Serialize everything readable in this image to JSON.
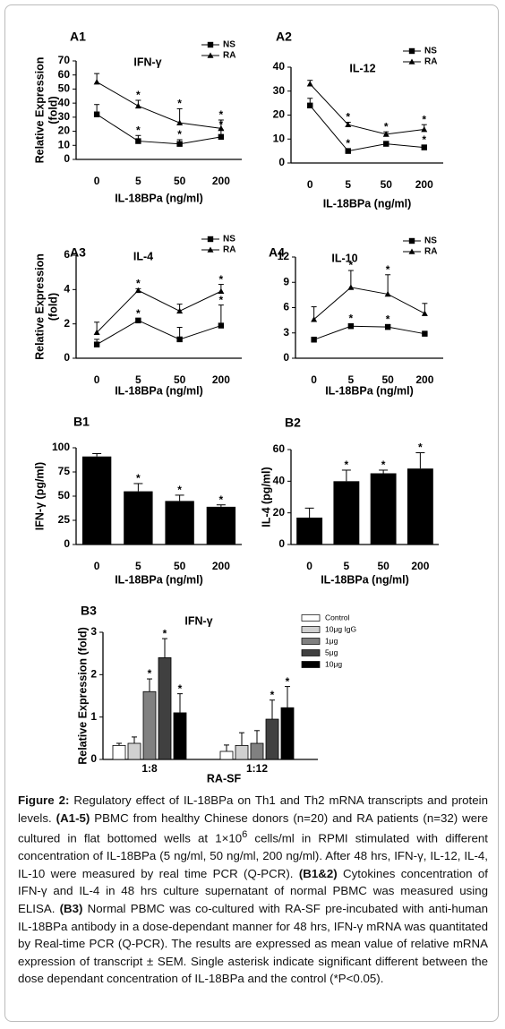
{
  "chart_data": [
    {
      "type": "line",
      "panel": "A1",
      "title": "IFN-γ",
      "ylabel": [
        "Relative Expression",
        "(fold)"
      ],
      "xlabel": "IL-18BPa (ng/ml)",
      "categories": [
        "0",
        "5",
        "50",
        "200"
      ],
      "ylim": [
        0,
        70
      ],
      "yticks": [
        0,
        10,
        20,
        30,
        40,
        50,
        60,
        70
      ],
      "grid": false,
      "legend": "top-right",
      "series": [
        {
          "name": "NS",
          "color": "#000000",
          "marker": "square",
          "values": [
            32,
            13,
            11,
            16
          ],
          "errors": [
            7,
            4,
            3,
            5
          ],
          "significance": [
            null,
            "*",
            "*",
            "*"
          ]
        },
        {
          "name": "RA",
          "color": "#000000",
          "marker": "triangle",
          "values": [
            55,
            38,
            26,
            22
          ],
          "errors": [
            6,
            4,
            10,
            6
          ],
          "significance": [
            null,
            "*",
            "*",
            "*"
          ]
        }
      ]
    },
    {
      "type": "line",
      "panel": "A2",
      "title": "IL-12",
      "xlabel": "IL-18BPa (ng/ml)",
      "categories": [
        "0",
        "5",
        "50",
        "200"
      ],
      "ylim": [
        0,
        40
      ],
      "yticks": [
        0,
        10,
        20,
        30,
        40
      ],
      "grid": false,
      "legend": "top-right",
      "series": [
        {
          "name": "NS",
          "color": "#000000",
          "marker": "square",
          "values": [
            24,
            5,
            8,
            6.5
          ],
          "errors": [
            3,
            1,
            1,
            1
          ],
          "significance": [
            null,
            "*",
            "*",
            "*"
          ]
        },
        {
          "name": "RA",
          "color": "#000000",
          "marker": "triangle",
          "values": [
            33,
            16,
            12,
            14
          ],
          "errors": [
            1.5,
            1,
            1,
            2
          ],
          "significance": [
            null,
            "*",
            "*",
            "*"
          ]
        }
      ]
    },
    {
      "type": "line",
      "panel": "A3",
      "title": "IL-4",
      "ylabel": [
        "Relative Expression",
        "(fold)"
      ],
      "xlabel": "IL-18BPa (ng/ml)",
      "categories": [
        "0",
        "5",
        "50",
        "200"
      ],
      "ylim": [
        0,
        6
      ],
      "yticks": [
        0,
        2,
        4,
        6
      ],
      "grid": false,
      "legend": "top-right",
      "series": [
        {
          "name": "NS",
          "color": "#000000",
          "marker": "square",
          "values": [
            0.8,
            2.2,
            1.1,
            1.9
          ],
          "errors": [
            0.3,
            0.1,
            0.7,
            1.2
          ],
          "significance": [
            null,
            "*",
            null,
            "*"
          ]
        },
        {
          "name": "RA",
          "color": "#000000",
          "marker": "triangle",
          "values": [
            1.5,
            3.95,
            2.75,
            3.9
          ],
          "errors": [
            0.6,
            0.1,
            0.4,
            0.4
          ],
          "significance": [
            null,
            "*",
            null,
            "*"
          ]
        }
      ]
    },
    {
      "type": "line",
      "panel": "A4",
      "title": "IL-10",
      "xlabel": "IL-18BPa (ng/ml)",
      "categories": [
        "0",
        "5",
        "50",
        "200"
      ],
      "ylim": [
        0,
        12
      ],
      "yticks": [
        0,
        3,
        6,
        9,
        12
      ],
      "grid": false,
      "legend": "top-right",
      "series": [
        {
          "name": "NS",
          "color": "#000000",
          "marker": "square",
          "values": [
            2.2,
            3.8,
            3.7,
            2.9
          ],
          "errors": [
            0.3,
            0.3,
            0.3,
            0.3
          ],
          "significance": [
            null,
            "*",
            "*",
            null
          ]
        },
        {
          "name": "RA",
          "color": "#000000",
          "marker": "triangle",
          "values": [
            4.6,
            8.4,
            7.6,
            5.3
          ],
          "errors": [
            1.5,
            2,
            2.3,
            1.2
          ],
          "significance": [
            null,
            "*",
            "*",
            null
          ]
        }
      ]
    },
    {
      "type": "bar",
      "panel": "B1",
      "ylabel": [
        "IFN-γ (pg/ml)"
      ],
      "xlabel": "IL-18BPa (ng/ml)",
      "categories": [
        "0",
        "5",
        "50",
        "200"
      ],
      "ylim": [
        0,
        100
      ],
      "yticks": [
        0,
        25,
        50,
        75,
        100
      ],
      "grid": false,
      "color": "#000000",
      "values": [
        91,
        55,
        45,
        39
      ],
      "errors": [
        3,
        8,
        6,
        2
      ],
      "significance": [
        null,
        "*",
        "*",
        "*"
      ]
    },
    {
      "type": "bar",
      "panel": "B2",
      "ylabel": [
        "IL-4 (pg/ml)"
      ],
      "xlabel": "IL-18BPa (ng/ml)",
      "categories": [
        "0",
        "5",
        "50",
        "200"
      ],
      "ylim": [
        0,
        60
      ],
      "yticks": [
        0,
        20,
        40,
        60
      ],
      "grid": false,
      "color": "#000000",
      "values": [
        17,
        40,
        45,
        48
      ],
      "errors": [
        6,
        7,
        2,
        10
      ],
      "significance": [
        null,
        "*",
        "*",
        "*"
      ]
    },
    {
      "type": "bar",
      "panel": "B3",
      "title": "IFN-γ",
      "ylabel": [
        "Relative Expression (fold)"
      ],
      "xlabel": "RA-SF",
      "categories": [
        "1:8",
        "1:12"
      ],
      "ylim": [
        0,
        3
      ],
      "yticks": [
        0,
        1,
        2,
        3
      ],
      "grid": false,
      "legend": "top-right",
      "series": [
        {
          "name": "Control",
          "color": "#ffffff",
          "values": [
            0.33,
            0.19
          ],
          "errors": [
            0.05,
            0.15
          ],
          "significance": [
            null,
            null
          ]
        },
        {
          "name": "10μg IgG",
          "color": "#d0d0d0",
          "values": [
            0.38,
            0.33
          ],
          "errors": [
            0.15,
            0.3
          ],
          "significance": [
            null,
            null
          ]
        },
        {
          "name": "1μg",
          "color": "#808080",
          "values": [
            1.6,
            0.38
          ],
          "errors": [
            0.3,
            0.3
          ],
          "significance": [
            "*",
            null
          ]
        },
        {
          "name": "5μg",
          "color": "#404040",
          "values": [
            2.4,
            0.95
          ],
          "errors": [
            0.45,
            0.45
          ],
          "significance": [
            "*",
            "*"
          ]
        },
        {
          "name": "10μg",
          "color": "#000000",
          "values": [
            1.1,
            1.22
          ],
          "errors": [
            0.45,
            0.5
          ],
          "significance": [
            "*",
            "*"
          ]
        }
      ]
    }
  ],
  "caption": {
    "segments": [
      "Figure 2:",
      " Regulatory effect of IL-18BPa on Th1 and Th2 mRNA transcripts and protein levels. ",
      "(A1-5)",
      " PBMC from healthy Chinese donors (n=20) and RA patients (n=32) were cultured in flat bottomed wells at 1×10",
      "6",
      " cells/ml in RPMI stimulated with different concentration of IL-18BPa (5 ng/ml, 50 ng/ml, 200 ng/ml). After 48 hrs, IFN-γ, IL-12, IL-4, IL-10 were measured by real time PCR (Q-PCR). ",
      "(B1&2)",
      " Cytokines concentration of IFN-γ and IL-4 in 48 hrs culture supernatant of normal PBMC was measured using ELISA. ",
      "(B3)",
      " Normal PBMC was co-cultured with RA-SF pre-incubated with anti-human IL-18BPa antibody in a dose-dependant manner for 48 hrs, IFN-γ mRNA was quantitated by Real-time PCR (Q-PCR). The results are expressed as mean value of relative mRNA expression of transcript ± SEM. Single asterisk indicate significant different between the dose dependant concentration of IL-18BPa and the control (*P<0.05)."
    ]
  }
}
